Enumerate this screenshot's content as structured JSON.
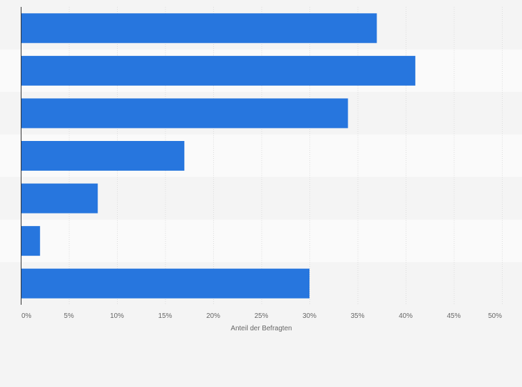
{
  "chart_data": {
    "type": "bar",
    "orientation": "horizontal",
    "categories": [
      "",
      "",
      "",
      "",
      "",
      "",
      ""
    ],
    "values": [
      37,
      41,
      34,
      17,
      8,
      2,
      30
    ],
    "xlabel": "Anteil der Befragten",
    "ylabel": "",
    "xlim": [
      0,
      50
    ],
    "ticks": [
      0,
      5,
      10,
      15,
      20,
      25,
      30,
      35,
      40,
      45,
      50
    ],
    "tick_labels": [
      "0%",
      "5%",
      "10%",
      "15%",
      "20%",
      "25%",
      "30%",
      "35%",
      "40%",
      "45%",
      "50%"
    ],
    "grid": true,
    "bar_color": "#2776de"
  }
}
